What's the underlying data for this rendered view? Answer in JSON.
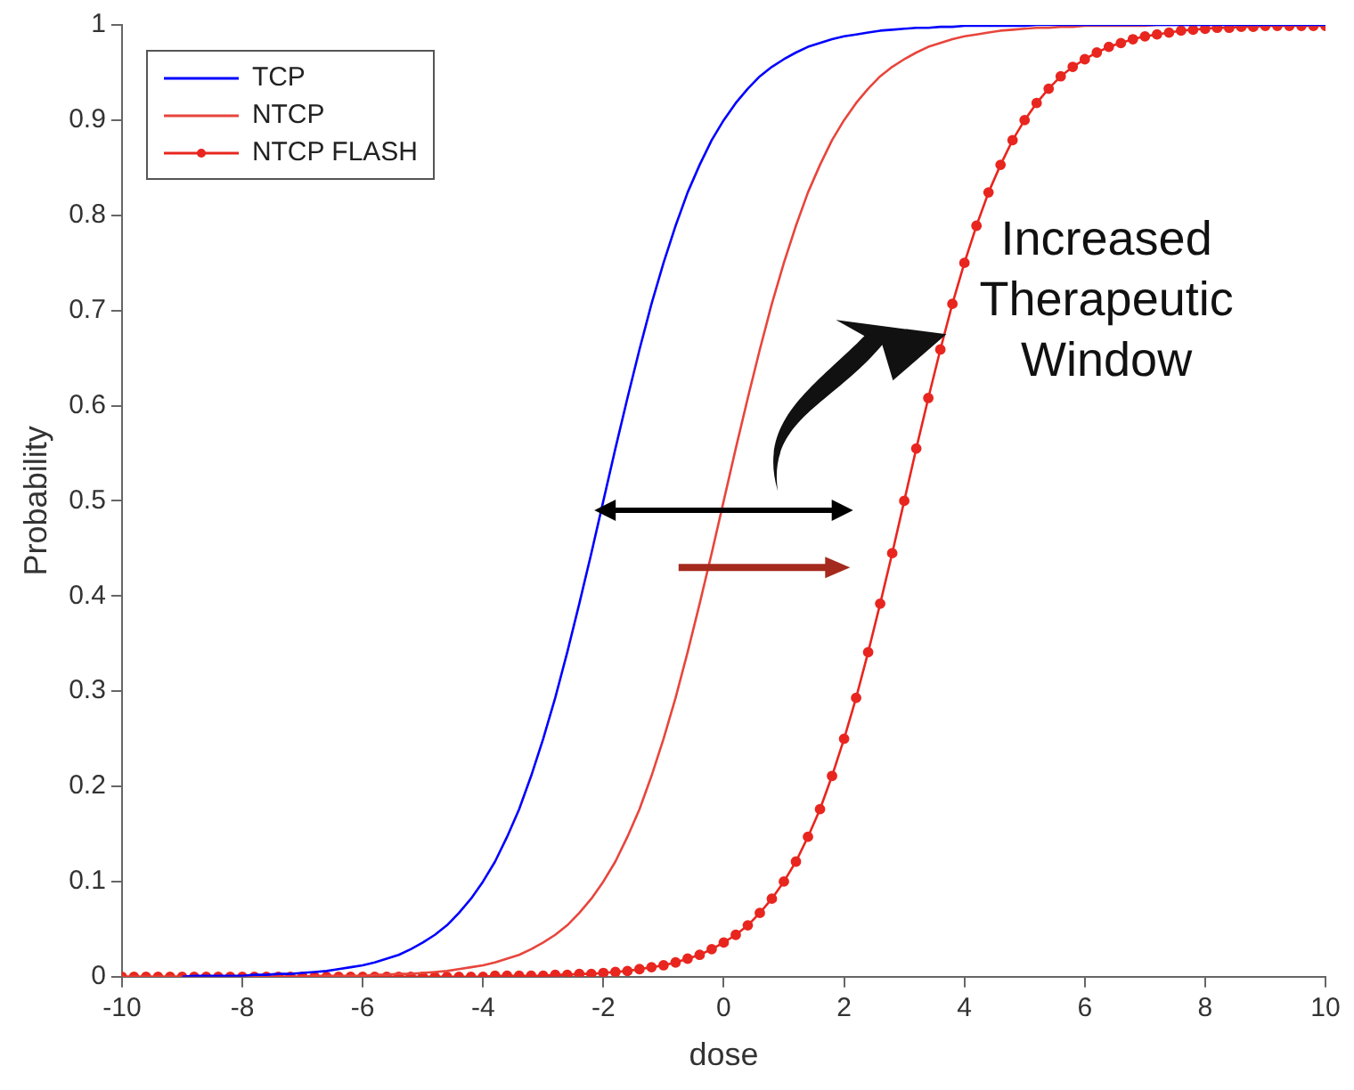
{
  "chart_data": {
    "type": "line",
    "xlabel": "dose",
    "ylabel": "Probability",
    "xlim": [
      -10,
      10
    ],
    "xticks": [
      -10,
      -8,
      -6,
      -4,
      -2,
      0,
      2,
      4,
      6,
      8,
      10
    ],
    "ylim": [
      0,
      1
    ],
    "yticks": [
      0,
      0.1,
      0.2,
      0.3,
      0.4,
      0.5,
      0.6,
      0.7,
      0.8,
      0.9,
      1
    ],
    "grid": false,
    "legend": "top left",
    "line_style": "solid",
    "annotations": [
      "Increased Therapeutic Window"
    ],
    "x": [
      -10,
      -9.8,
      -9.6,
      -9.4,
      -9.2,
      -9,
      -8.8,
      -8.6,
      -8.4,
      -8.2,
      -8,
      -7.8,
      -7.6,
      -7.4,
      -7.2,
      -7,
      -6.8,
      -6.6,
      -6.4,
      -6.2,
      -6,
      -5.8,
      -5.6,
      -5.4,
      -5.2,
      -5,
      -4.8,
      -4.6,
      -4.4,
      -4.2,
      -4,
      -3.8,
      -3.6,
      -3.4,
      -3.2,
      -3,
      -2.8,
      -2.6,
      -2.4,
      -2.2,
      -2,
      -1.8,
      -1.6,
      -1.4,
      -1.2,
      -1,
      -0.8,
      -0.6,
      -0.4,
      -0.2,
      0,
      0.2,
      0.4,
      0.6,
      0.8,
      1,
      1.2,
      1.4,
      1.6,
      1.8,
      2,
      2.2,
      2.4,
      2.6,
      2.8,
      3,
      3.2,
      3.4,
      3.6,
      3.8,
      4,
      4.2,
      4.4,
      4.6,
      4.8,
      5,
      5.2,
      5.4,
      5.6,
      5.8,
      6,
      6.2,
      6.4,
      6.6,
      6.8,
      7,
      7.2,
      7.4,
      7.6,
      7.8,
      8,
      8.2,
      8.4,
      8.6,
      8.8,
      9,
      9.2,
      9.4,
      9.6,
      9.8,
      10
    ],
    "series": [
      {
        "name": "TCP",
        "color": "#0000ff",
        "marker": "none",
        "values": [
          null,
          null,
          null,
          null,
          null,
          0,
          0.001,
          0.001,
          0.001,
          0.001,
          0.001,
          0.002,
          0.002,
          0.003,
          0.003,
          0.004,
          0.005,
          0.006,
          0.008,
          0.01,
          0.012,
          0.015,
          0.019,
          0.023,
          0.029,
          0.036,
          0.044,
          0.054,
          0.067,
          0.082,
          0.1,
          0.121,
          0.147,
          0.176,
          0.211,
          0.25,
          0.293,
          0.341,
          0.392,
          0.445,
          0.5,
          0.555,
          0.608,
          0.659,
          0.707,
          0.75,
          0.789,
          0.824,
          0.853,
          0.879,
          0.9,
          0.918,
          0.933,
          0.946,
          0.956,
          0.964,
          0.971,
          0.977,
          0.981,
          0.985,
          0.988,
          0.99,
          0.992,
          0.994,
          0.995,
          0.996,
          0.997,
          0.997,
          0.998,
          0.998,
          0.999,
          0.999,
          0.999,
          0.999,
          0.999,
          0.999,
          1,
          1,
          1,
          1,
          1,
          1,
          1,
          1,
          1,
          1,
          1,
          1,
          1,
          1,
          1,
          1,
          1,
          1,
          1,
          1,
          1,
          1,
          1,
          1,
          1
        ]
      },
      {
        "name": "NTCP",
        "color": "#e8453c",
        "marker": "none",
        "values": [
          0,
          0,
          0,
          0,
          0,
          0,
          0,
          0,
          0,
          0,
          0,
          0,
          0,
          0,
          0,
          0,
          0.001,
          0.001,
          0.001,
          0.001,
          0.001,
          0.002,
          0.002,
          0.003,
          0.003,
          0.004,
          0.005,
          0.006,
          0.008,
          0.01,
          0.012,
          0.015,
          0.019,
          0.023,
          0.029,
          0.036,
          0.044,
          0.054,
          0.067,
          0.082,
          0.1,
          0.121,
          0.147,
          0.176,
          0.211,
          0.25,
          0.293,
          0.341,
          0.392,
          0.445,
          0.5,
          0.555,
          0.608,
          0.659,
          0.707,
          0.75,
          0.789,
          0.824,
          0.853,
          0.879,
          0.9,
          0.918,
          0.933,
          0.946,
          0.956,
          0.964,
          0.971,
          0.977,
          0.981,
          0.985,
          0.988,
          0.99,
          0.992,
          0.994,
          0.995,
          0.996,
          0.997,
          0.997,
          0.998,
          0.998,
          0.999,
          0.999,
          0.999,
          0.999,
          0.999,
          0.999,
          1,
          1,
          1,
          1,
          1,
          1,
          1,
          1,
          1,
          1,
          1,
          1,
          1,
          1,
          1
        ]
      },
      {
        "name": "NTCP FLASH",
        "color": "#e8261f",
        "marker": "circle",
        "values": [
          0,
          0,
          0,
          0,
          0,
          0,
          0,
          0,
          0,
          0,
          0,
          0,
          0,
          0,
          0,
          0,
          0,
          0,
          0,
          0,
          0,
          0,
          0,
          0,
          0,
          0,
          0,
          0,
          0,
          0,
          0,
          0.001,
          0.001,
          0.001,
          0.001,
          0.001,
          0.002,
          0.002,
          0.003,
          0.003,
          0.004,
          0.005,
          0.006,
          0.008,
          0.01,
          0.012,
          0.015,
          0.019,
          0.023,
          0.029,
          0.036,
          0.044,
          0.054,
          0.067,
          0.082,
          0.1,
          0.121,
          0.147,
          0.176,
          0.211,
          0.25,
          0.293,
          0.341,
          0.392,
          0.445,
          0.5,
          0.555,
          0.608,
          0.659,
          0.707,
          0.75,
          0.789,
          0.824,
          0.853,
          0.879,
          0.9,
          0.918,
          0.933,
          0.946,
          0.956,
          0.964,
          0.971,
          0.977,
          0.981,
          0.985,
          0.988,
          0.99,
          0.992,
          0.994,
          0.995,
          0.996,
          0.997,
          0.997,
          0.998,
          0.998,
          0.999,
          0.999,
          0.999,
          0.999,
          0.999,
          0.999
        ]
      }
    ]
  }
}
